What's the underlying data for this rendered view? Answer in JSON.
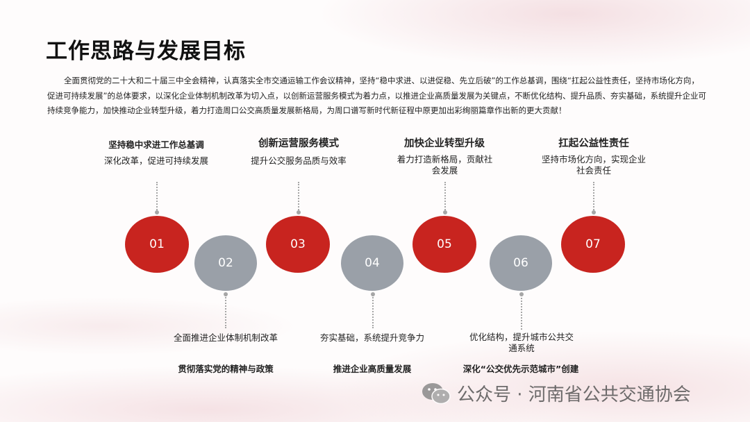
{
  "title": "工作思路与发展目标",
  "intro": "全面贯彻党的二十大和二十届三中全会精神，认真落实全市交通运输工作会议精神，坚持“稳中求进、以进促稳、先立后破”的工作总基调，围绕“扛起公益性责任，坚持市场化方向，促进可持续发展”的总体要求，以深化企业体制机制改革为切入点，以创新运营服务模式为着力点，以推进企业高质量发展为关键点，不断优化结构、提升品质、夯实基础，系统提升企业可持续竞争能力，加快推动企业转型升级，着力打造周口公交高质量发展新格局，为周口谱写新时代新征程中原更加出彩绚丽篇章作出新的更大贡献！",
  "steps": [
    {
      "num": "01",
      "head": "坚持稳中求进工作总基调",
      "sub": "深化改革，促进可持续发展"
    },
    {
      "num": "02",
      "head": "贯彻落实党的精神与政策",
      "sub": "全面推进企业体制机制改革"
    },
    {
      "num": "03",
      "head": "创新运营服务模式",
      "sub": "提升公交服务品质与效率"
    },
    {
      "num": "04",
      "head": "推进企业高质量发展",
      "sub": "夯实基础，系统提升竞争力"
    },
    {
      "num": "05",
      "head": "加快企业转型升级",
      "sub": "着力打造新格局，贡献社会发展"
    },
    {
      "num": "06",
      "head": "深化“公交优先示范城市”创建",
      "sub": "优化结构，提升城市公共交通系统"
    },
    {
      "num": "07",
      "head": "扛起公益性责任",
      "sub": "坚持市场化方向，实现企业社会责任"
    }
  ],
  "watermark": "公众号 · 河南省公共交通协会",
  "colors": {
    "red": "#c8241f",
    "gray": "#9aa0a8"
  }
}
